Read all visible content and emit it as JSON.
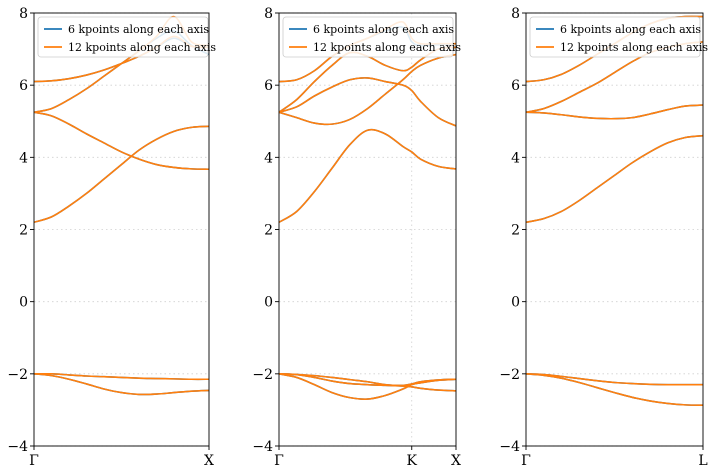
{
  "colors": {
    "series_6": "#1f77b4",
    "series_12": "#ff7f0e",
    "grid": "#d0d0d0"
  },
  "chart_data": [
    {
      "type": "line",
      "panel": "Gamma-X",
      "grid": true,
      "legend_placement": "top-left",
      "ylim": [
        -4,
        8
      ],
      "yticks": [
        -4,
        -2,
        0,
        2,
        4,
        6,
        8
      ],
      "yticklabels": [
        "−4",
        "−2",
        "0",
        "2",
        "4",
        "6",
        "8"
      ],
      "xlim": [
        0,
        1
      ],
      "xticks": [
        0,
        1
      ],
      "xticklabels": [
        "Γ",
        "X"
      ],
      "x": [
        0,
        0.1,
        0.2,
        0.3,
        0.4,
        0.5,
        0.6,
        0.7,
        0.8,
        0.9,
        1.0
      ],
      "series": [
        {
          "name": "6 kpoints along each axis",
          "bands": [
            [
              -2.0,
              -2.0,
              -2.03,
              -2.06,
              -2.08,
              -2.1,
              -2.12,
              -2.13,
              -2.14,
              -2.15,
              -2.15
            ],
            [
              -2.0,
              -2.05,
              -2.15,
              -2.28,
              -2.42,
              -2.52,
              -2.57,
              -2.56,
              -2.52,
              -2.48,
              -2.46
            ],
            [
              2.2,
              2.35,
              2.65,
              3.0,
              3.4,
              3.8,
              4.2,
              4.5,
              4.72,
              4.83,
              4.86
            ],
            [
              5.25,
              5.15,
              4.92,
              4.65,
              4.4,
              4.15,
              3.95,
              3.8,
              3.72,
              3.68,
              3.67
            ],
            [
              5.25,
              5.35,
              5.6,
              5.9,
              6.25,
              6.6,
              6.95,
              7.3,
              7.5,
              7.1,
              6.85
            ],
            [
              6.1,
              6.12,
              6.18,
              6.28,
              6.42,
              6.6,
              6.8,
              7.05,
              7.3,
              7.08,
              7.05
            ]
          ]
        },
        {
          "name": "12 kpoints along each axis",
          "bands": [
            [
              -2.0,
              -2.0,
              -2.03,
              -2.06,
              -2.08,
              -2.1,
              -2.12,
              -2.13,
              -2.14,
              -2.15,
              -2.15
            ],
            [
              -2.0,
              -2.05,
              -2.15,
              -2.28,
              -2.42,
              -2.52,
              -2.57,
              -2.56,
              -2.52,
              -2.48,
              -2.46
            ],
            [
              2.2,
              2.35,
              2.65,
              3.0,
              3.4,
              3.8,
              4.2,
              4.5,
              4.72,
              4.83,
              4.86
            ],
            [
              5.25,
              5.15,
              4.92,
              4.65,
              4.4,
              4.15,
              3.95,
              3.8,
              3.72,
              3.68,
              3.67
            ],
            [
              5.25,
              5.35,
              5.6,
              5.9,
              6.25,
              6.6,
              6.95,
              7.35,
              7.9,
              7.2,
              7.1
            ],
            [
              6.1,
              6.12,
              6.18,
              6.28,
              6.42,
              6.6,
              6.8,
              7.05,
              7.35,
              7.08,
              7.05
            ]
          ]
        }
      ]
    },
    {
      "type": "line",
      "panel": "Gamma-K-X",
      "grid": true,
      "legend_placement": "top-left",
      "ylim": [
        -4,
        8
      ],
      "yticks": [
        -4,
        -2,
        0,
        2,
        4,
        6,
        8
      ],
      "yticklabels": [
        "−4",
        "−2",
        "0",
        "2",
        "4",
        "6",
        "8"
      ],
      "xlim": [
        0,
        1
      ],
      "xticks": [
        0,
        0.75,
        1
      ],
      "xticklabels": [
        "Γ",
        "K",
        "X"
      ],
      "x": [
        0,
        0.1,
        0.2,
        0.3,
        0.4,
        0.5,
        0.6,
        0.7,
        0.75,
        0.8,
        0.9,
        1.0
      ],
      "series": [
        {
          "name": "6 kpoints along each axis",
          "bands": [
            [
              -2.0,
              -2.02,
              -2.1,
              -2.2,
              -2.27,
              -2.3,
              -2.32,
              -2.34,
              -2.36,
              -2.4,
              -2.45,
              -2.47
            ],
            [
              -2.0,
              -2.1,
              -2.3,
              -2.52,
              -2.66,
              -2.7,
              -2.6,
              -2.42,
              -2.3,
              -2.25,
              -2.18,
              -2.15
            ],
            [
              -2.0,
              -2.02,
              -2.05,
              -2.1,
              -2.16,
              -2.22,
              -2.3,
              -2.32,
              -2.28,
              -2.22,
              -2.17,
              -2.15
            ],
            [
              2.2,
              2.5,
              3.05,
              3.7,
              4.35,
              4.75,
              4.65,
              4.3,
              4.15,
              3.95,
              3.75,
              3.68
            ],
            [
              5.25,
              5.1,
              4.95,
              4.92,
              5.05,
              5.35,
              5.75,
              6.15,
              6.38,
              6.55,
              6.75,
              6.85
            ],
            [
              5.25,
              5.4,
              5.7,
              5.95,
              6.15,
              6.2,
              6.1,
              6.0,
              5.85,
              5.55,
              5.1,
              4.87
            ],
            [
              5.25,
              5.6,
              6.1,
              6.55,
              6.9,
              6.8,
              6.55,
              6.4,
              6.5,
              6.7,
              7.0,
              7.05
            ],
            [
              6.1,
              6.15,
              6.4,
              6.8,
              7.1,
              7.3,
              7.5,
              7.6,
              7.2,
              7.1,
              7.12,
              7.15
            ]
          ]
        },
        {
          "name": "12 kpoints along each axis",
          "bands": [
            [
              -2.0,
              -2.02,
              -2.1,
              -2.2,
              -2.27,
              -2.3,
              -2.32,
              -2.34,
              -2.36,
              -2.4,
              -2.45,
              -2.47
            ],
            [
              -2.0,
              -2.1,
              -2.3,
              -2.52,
              -2.66,
              -2.7,
              -2.6,
              -2.42,
              -2.3,
              -2.25,
              -2.18,
              -2.15
            ],
            [
              -2.0,
              -2.02,
              -2.05,
              -2.1,
              -2.16,
              -2.22,
              -2.3,
              -2.32,
              -2.28,
              -2.22,
              -2.17,
              -2.15
            ],
            [
              2.2,
              2.5,
              3.05,
              3.7,
              4.35,
              4.75,
              4.65,
              4.3,
              4.15,
              3.95,
              3.75,
              3.68
            ],
            [
              5.25,
              5.1,
              4.95,
              4.92,
              5.05,
              5.35,
              5.75,
              6.15,
              6.38,
              6.55,
              6.75,
              6.85
            ],
            [
              5.25,
              5.4,
              5.7,
              5.95,
              6.15,
              6.2,
              6.1,
              6.0,
              5.85,
              5.55,
              5.1,
              4.87
            ],
            [
              5.25,
              5.6,
              6.1,
              6.55,
              6.9,
              6.8,
              6.55,
              6.4,
              6.5,
              6.7,
              7.0,
              7.05
            ],
            [
              6.1,
              6.15,
              6.4,
              6.8,
              7.1,
              7.3,
              7.55,
              7.75,
              7.3,
              7.15,
              7.15,
              7.15
            ]
          ]
        }
      ]
    },
    {
      "type": "line",
      "panel": "Gamma-L",
      "grid": true,
      "legend_placement": "top-left",
      "ylim": [
        -4,
        8
      ],
      "yticks": [
        -4,
        -2,
        0,
        2,
        4,
        6,
        8
      ],
      "yticklabels": [
        "−4",
        "−2",
        "0",
        "2",
        "4",
        "6",
        "8"
      ],
      "xlim": [
        0,
        1
      ],
      "xticks": [
        0,
        1
      ],
      "xticklabels": [
        "Γ",
        "L"
      ],
      "x": [
        0,
        0.1,
        0.2,
        0.3,
        0.4,
        0.5,
        0.6,
        0.7,
        0.8,
        0.9,
        1.0
      ],
      "series": [
        {
          "name": "6 kpoints along each axis",
          "bands": [
            [
              -2.0,
              -2.02,
              -2.07,
              -2.13,
              -2.19,
              -2.24,
              -2.27,
              -2.29,
              -2.3,
              -2.3,
              -2.3
            ],
            [
              -2.0,
              -2.04,
              -2.12,
              -2.24,
              -2.38,
              -2.52,
              -2.65,
              -2.75,
              -2.82,
              -2.86,
              -2.87
            ],
            [
              2.2,
              2.3,
              2.5,
              2.8,
              3.15,
              3.5,
              3.85,
              4.15,
              4.4,
              4.55,
              4.6
            ],
            [
              5.25,
              5.23,
              5.18,
              5.12,
              5.08,
              5.07,
              5.1,
              5.2,
              5.32,
              5.42,
              5.45
            ],
            [
              5.25,
              5.35,
              5.55,
              5.8,
              6.05,
              6.35,
              6.65,
              6.9,
              7.05,
              7.15,
              7.2
            ],
            [
              6.1,
              6.15,
              6.3,
              6.55,
              6.85,
              7.15,
              7.45,
              7.7,
              7.85,
              7.9,
              7.9
            ]
          ]
        },
        {
          "name": "12 kpoints along each axis",
          "bands": [
            [
              -2.0,
              -2.02,
              -2.07,
              -2.13,
              -2.19,
              -2.24,
              -2.27,
              -2.29,
              -2.3,
              -2.3,
              -2.3
            ],
            [
              -2.0,
              -2.04,
              -2.12,
              -2.24,
              -2.38,
              -2.52,
              -2.65,
              -2.75,
              -2.82,
              -2.86,
              -2.87
            ],
            [
              2.2,
              2.3,
              2.5,
              2.8,
              3.15,
              3.5,
              3.85,
              4.15,
              4.4,
              4.55,
              4.6
            ],
            [
              5.25,
              5.23,
              5.18,
              5.12,
              5.08,
              5.07,
              5.1,
              5.2,
              5.32,
              5.42,
              5.45
            ],
            [
              5.25,
              5.35,
              5.55,
              5.8,
              6.05,
              6.35,
              6.65,
              6.9,
              7.05,
              7.15,
              7.2
            ],
            [
              6.1,
              6.15,
              6.3,
              6.55,
              6.85,
              7.15,
              7.45,
              7.7,
              7.85,
              7.9,
              7.9
            ]
          ]
        }
      ]
    }
  ]
}
